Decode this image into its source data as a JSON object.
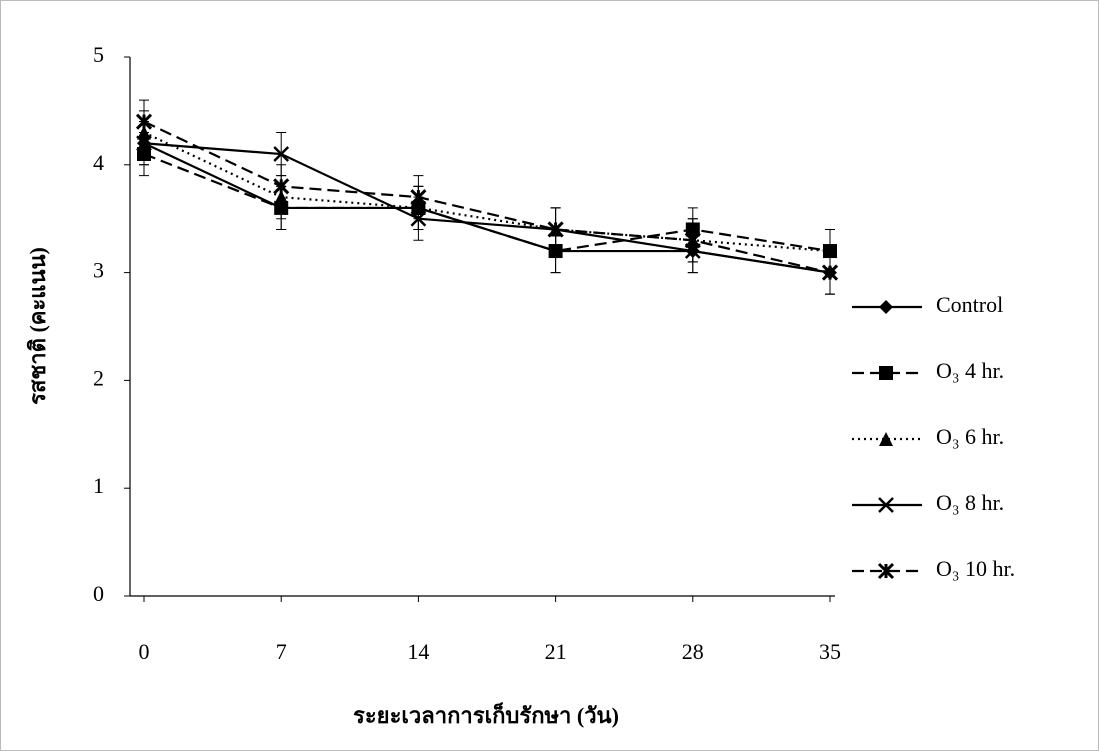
{
  "chart_data": {
    "type": "line",
    "x_label": "ระยะเวลาการเก็บรักษา (วัน)",
    "y_label": "รสชาติ (คะแนน)",
    "categories": [
      "0",
      "7",
      "14",
      "21",
      "28",
      "35"
    ],
    "ylim": [
      0,
      5
    ],
    "yticks": [
      0,
      1,
      2,
      3,
      4,
      5
    ],
    "legend": "right",
    "series": [
      {
        "name": "Control",
        "color": "#000000",
        "marker": "diamond",
        "dash": "solid",
        "values": [
          4.2,
          3.6,
          3.6,
          3.2,
          3.2,
          3.0
        ],
        "errors": [
          0.2,
          0.2,
          0.2,
          0.2,
          0.2,
          0.2
        ]
      },
      {
        "name": "O₃ 4 hr.",
        "color": "#000000",
        "marker": "square",
        "dash": "dashed",
        "values": [
          4.1,
          3.6,
          3.6,
          3.2,
          3.4,
          3.2
        ],
        "errors": [
          0.2,
          0.2,
          0.2,
          0.2,
          0.2,
          0.2
        ]
      },
      {
        "name": "O₃ 6 hr.",
        "color": "#000000",
        "marker": "triangle",
        "dash": "dotted",
        "values": [
          4.3,
          3.7,
          3.6,
          3.4,
          3.3,
          3.2
        ],
        "errors": [
          0.2,
          0.2,
          0.2,
          0.2,
          0.2,
          0.2
        ]
      },
      {
        "name": "O₃ 8 hr.",
        "color": "#000000",
        "marker": "x",
        "dash": "solid",
        "values": [
          4.2,
          4.1,
          3.5,
          3.4,
          3.2,
          3.0
        ],
        "errors": [
          0.2,
          0.2,
          0.2,
          0.2,
          0.2,
          0.2
        ]
      },
      {
        "name": "O₃ 10 hr.",
        "color": "#000000",
        "marker": "asterisk",
        "dash": "dashed",
        "values": [
          4.4,
          3.8,
          3.7,
          3.4,
          3.3,
          3.0
        ],
        "errors": [
          0.2,
          0.2,
          0.2,
          0.2,
          0.2,
          0.2
        ]
      }
    ]
  }
}
